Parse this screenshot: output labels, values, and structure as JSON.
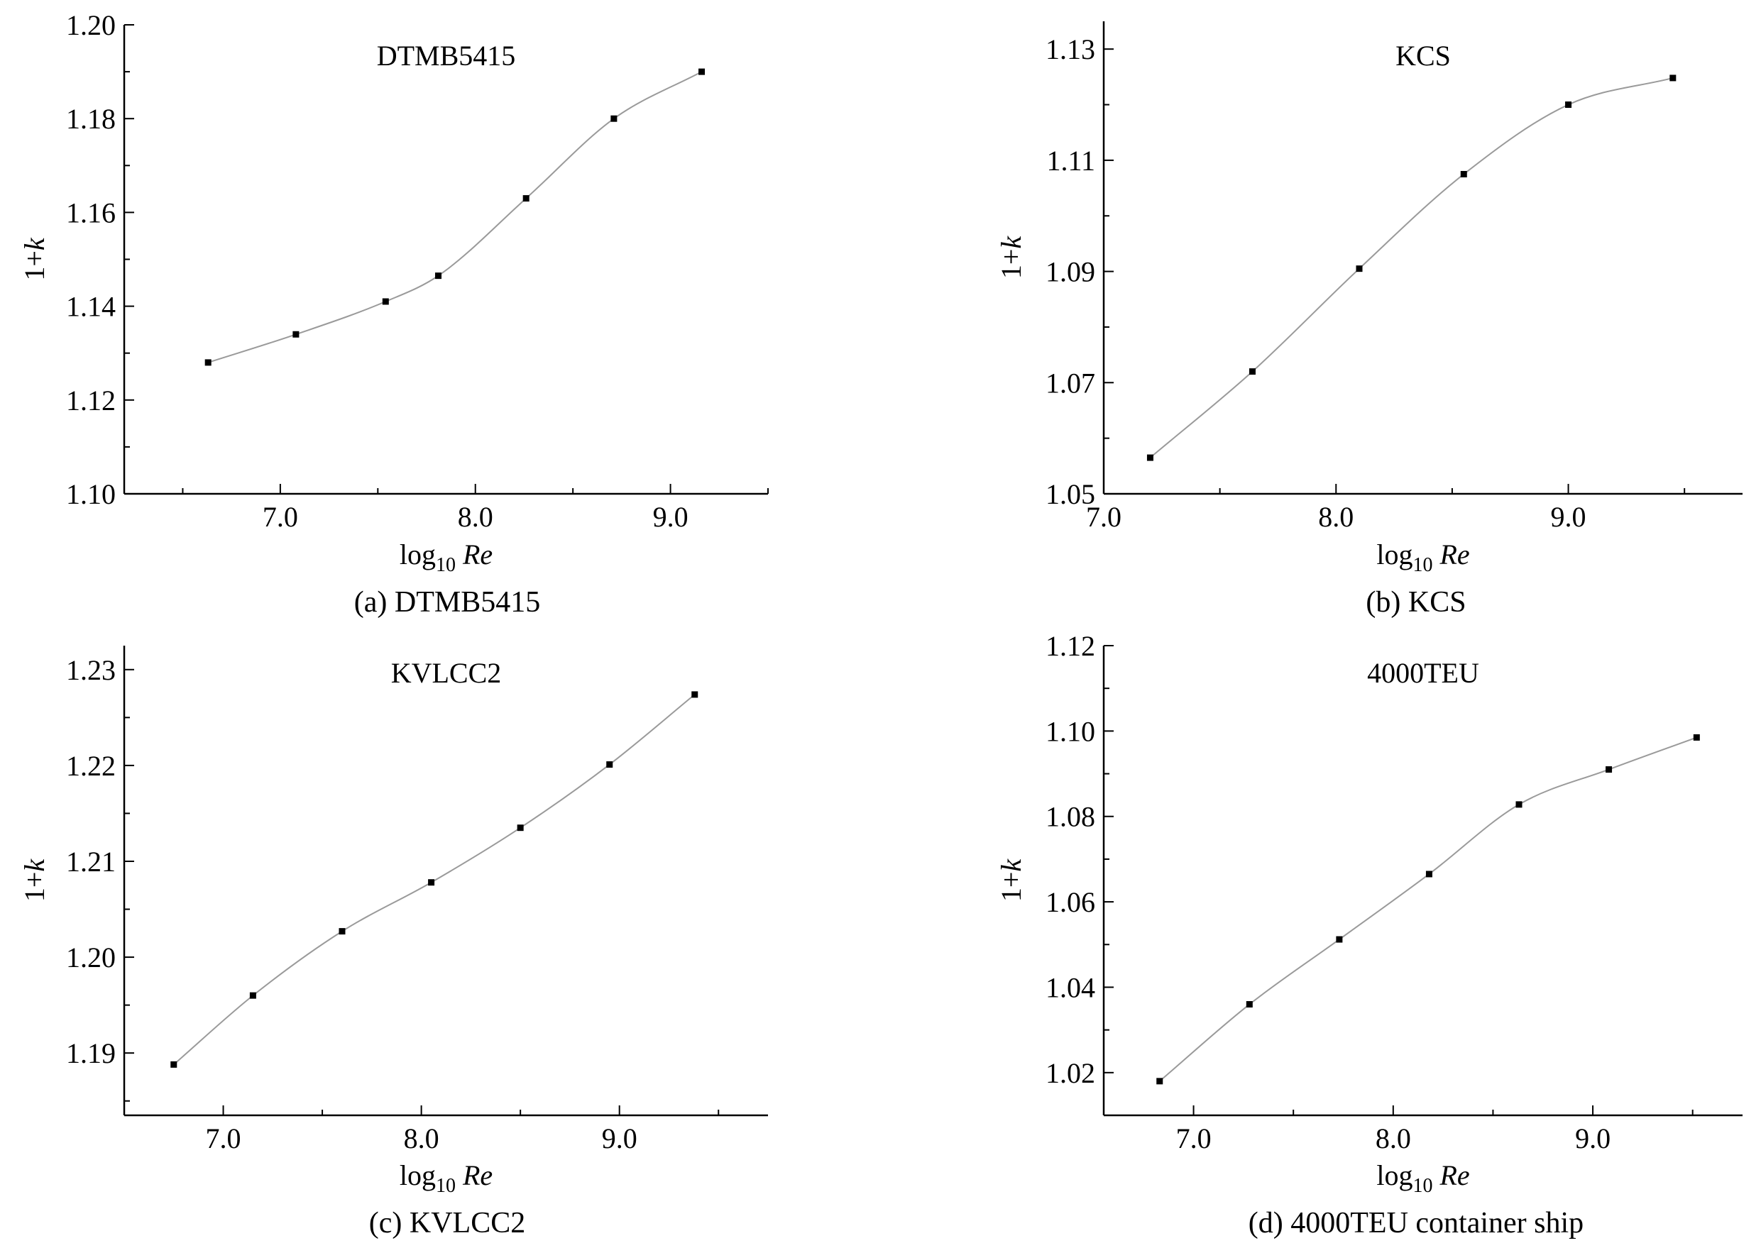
{
  "chart_data": [
    {
      "type": "line",
      "title": "DTMB5415",
      "caption": "(a) DTMB5415",
      "xlabel": "log10 Re",
      "ylabel": "1+k",
      "xlim": [
        6.2,
        9.5
      ],
      "ylim": [
        1.1,
        1.2
      ],
      "xticks": [
        7.0,
        8.0,
        9.0
      ],
      "xtick_labels": [
        "7.0",
        "8.0",
        "9.0"
      ],
      "yticks": [
        1.1,
        1.12,
        1.14,
        1.16,
        1.18,
        1.2
      ],
      "ytick_labels": [
        "1.10",
        "1.12",
        "1.14",
        "1.16",
        "1.18",
        "1.20"
      ],
      "x": [
        6.63,
        7.08,
        7.54,
        7.81,
        8.26,
        8.71,
        9.16
      ],
      "y": [
        1.128,
        1.134,
        1.141,
        1.1465,
        1.163,
        1.18,
        1.19
      ]
    },
    {
      "type": "line",
      "title": "KCS",
      "caption": "(b) KCS",
      "xlabel": "log10 Re",
      "ylabel": "1+k",
      "xlim": [
        7.0,
        9.75
      ],
      "ylim": [
        1.05,
        1.135
      ],
      "xticks": [
        7.0,
        8.0,
        9.0
      ],
      "xtick_labels": [
        "7.0",
        "8.0",
        "9.0"
      ],
      "yticks": [
        1.05,
        1.07,
        1.09,
        1.11,
        1.13
      ],
      "ytick_labels": [
        "1.05",
        "1.07",
        "1.09",
        "1.11",
        "1.13"
      ],
      "x": [
        7.2,
        7.64,
        8.1,
        8.55,
        9.0,
        9.45
      ],
      "y": [
        1.0565,
        1.072,
        1.0905,
        1.1075,
        1.12,
        1.1248
      ]
    },
    {
      "type": "line",
      "title": "KVLCC2",
      "caption": "(c) KVLCC2",
      "xlabel": "log10 Re",
      "ylabel": "1+k",
      "xlim": [
        6.5,
        9.75
      ],
      "ylim": [
        1.1835,
        1.2325
      ],
      "xticks": [
        7.0,
        8.0,
        9.0
      ],
      "xtick_labels": [
        "7.0",
        "8.0",
        "9.0"
      ],
      "yticks": [
        1.19,
        1.2,
        1.21,
        1.22,
        1.23
      ],
      "ytick_labels": [
        "1.19",
        "1.20",
        "1.21",
        "1.22",
        "1.23"
      ],
      "x": [
        6.75,
        7.15,
        7.6,
        8.05,
        8.5,
        8.95,
        9.38
      ],
      "y": [
        1.1888,
        1.196,
        1.2027,
        1.2078,
        1.2135,
        1.2201,
        1.2274
      ]
    },
    {
      "type": "line",
      "title": "4000TEU",
      "caption": "(d) 4000TEU container ship",
      "xlabel": "log10 Re",
      "ylabel": "1+k",
      "xlim": [
        6.55,
        9.75
      ],
      "ylim": [
        1.01,
        1.12
      ],
      "xticks": [
        7.0,
        8.0,
        9.0
      ],
      "xtick_labels": [
        "7.0",
        "8.0",
        "9.0"
      ],
      "yticks": [
        1.02,
        1.04,
        1.06,
        1.08,
        1.1,
        1.12
      ],
      "ytick_labels": [
        "1.02",
        "1.04",
        "1.06",
        "1.08",
        "1.10",
        "1.12"
      ],
      "x": [
        6.83,
        7.28,
        7.73,
        8.18,
        8.63,
        9.08,
        9.52
      ],
      "y": [
        1.018,
        1.036,
        1.0512,
        1.0665,
        1.0828,
        1.091,
        1.0985
      ]
    }
  ]
}
